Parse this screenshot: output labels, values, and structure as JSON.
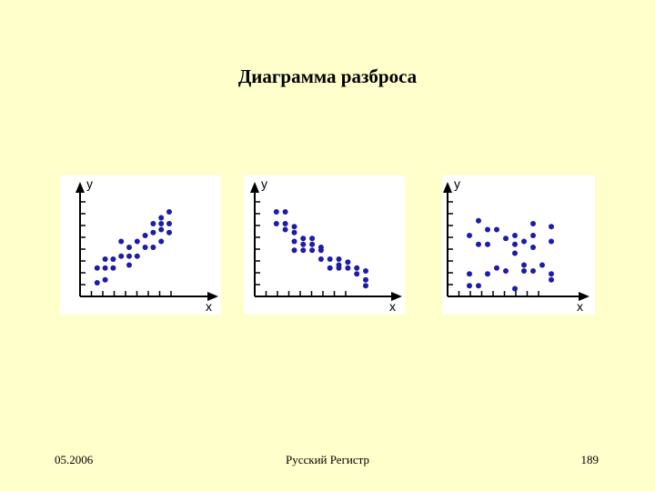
{
  "slide": {
    "title": "Диаграмма разброса",
    "footer_left": "05.2006",
    "footer_center": "Русский Регистр",
    "footer_right": "189"
  },
  "colors": {
    "background": "#ffffcc",
    "panel": "#ffffff",
    "point": "#1c1ca8",
    "axis": "#000000"
  },
  "chart_data": [
    {
      "type": "scatter",
      "title": "",
      "xlabel": "x",
      "ylabel": "y",
      "xlim": [
        0,
        10
      ],
      "ylim": [
        0,
        8
      ],
      "points": [
        [
          1,
          1.8
        ],
        [
          1,
          0.8
        ],
        [
          2,
          2.4
        ],
        [
          2,
          1.8
        ],
        [
          2,
          1.0
        ],
        [
          3,
          2.4
        ],
        [
          3,
          1.8
        ],
        [
          4,
          3.6
        ],
        [
          4,
          2.6
        ],
        [
          5,
          3.2
        ],
        [
          5,
          2.6
        ],
        [
          5,
          2.0
        ],
        [
          6,
          3.6
        ],
        [
          6,
          2.6
        ],
        [
          7,
          4.0
        ],
        [
          7,
          3.2
        ],
        [
          8,
          4.8
        ],
        [
          8,
          4.2
        ],
        [
          8,
          3.2
        ],
        [
          9,
          5.2
        ],
        [
          9,
          4.4
        ],
        [
          9,
          4.8
        ],
        [
          9,
          3.6
        ],
        [
          10,
          5.6
        ],
        [
          10,
          4.8
        ],
        [
          10,
          4.2
        ]
      ]
    },
    {
      "type": "scatter",
      "title": "",
      "xlabel": "x",
      "ylabel": "y",
      "xlim": [
        0,
        11
      ],
      "ylim": [
        0,
        8
      ],
      "points": [
        [
          1,
          5.6
        ],
        [
          1,
          4.8
        ],
        [
          2,
          5.6
        ],
        [
          2,
          4.8
        ],
        [
          2,
          4.4
        ],
        [
          3,
          4.6
        ],
        [
          3,
          4.2
        ],
        [
          3,
          3.6
        ],
        [
          3,
          3.0
        ],
        [
          4,
          3.8
        ],
        [
          4,
          3.0
        ],
        [
          4,
          3.4
        ],
        [
          5,
          3.4
        ],
        [
          5,
          3.8
        ],
        [
          5,
          3.0
        ],
        [
          6,
          3.2
        ],
        [
          6,
          3.0
        ],
        [
          6,
          2.4
        ],
        [
          7,
          2.4
        ],
        [
          7,
          1.8
        ],
        [
          8,
          2.0
        ],
        [
          8,
          2.4
        ],
        [
          8,
          1.8
        ],
        [
          9,
          2.2
        ],
        [
          9,
          1.8
        ],
        [
          10,
          1.8
        ],
        [
          10,
          1.4
        ],
        [
          11,
          1.6
        ],
        [
          11,
          1.0
        ],
        [
          11,
          0.6
        ]
      ]
    },
    {
      "type": "scatter",
      "title": "",
      "xlabel": "x",
      "ylabel": "y",
      "xlim": [
        0,
        11
      ],
      "ylim": [
        0,
        8
      ],
      "points": [
        [
          1,
          4.0
        ],
        [
          1,
          1.4
        ],
        [
          1,
          0.6
        ],
        [
          2,
          5.0
        ],
        [
          2,
          3.4
        ],
        [
          2,
          0.6
        ],
        [
          3,
          4.4
        ],
        [
          3,
          3.4
        ],
        [
          3,
          1.4
        ],
        [
          4,
          4.4
        ],
        [
          4,
          1.8
        ],
        [
          5,
          3.8
        ],
        [
          5,
          1.6
        ],
        [
          6,
          3.4
        ],
        [
          6,
          2.8
        ],
        [
          6,
          0.4
        ],
        [
          6,
          4.0
        ],
        [
          7,
          3.6
        ],
        [
          7,
          1.6
        ],
        [
          7,
          2.0
        ],
        [
          8,
          4.8
        ],
        [
          8,
          4.0
        ],
        [
          8,
          3.2
        ],
        [
          8,
          1.6
        ],
        [
          9,
          2.0
        ],
        [
          10,
          4.6
        ],
        [
          10,
          3.6
        ],
        [
          10,
          1.4
        ],
        [
          10,
          1.0
        ]
      ]
    }
  ]
}
